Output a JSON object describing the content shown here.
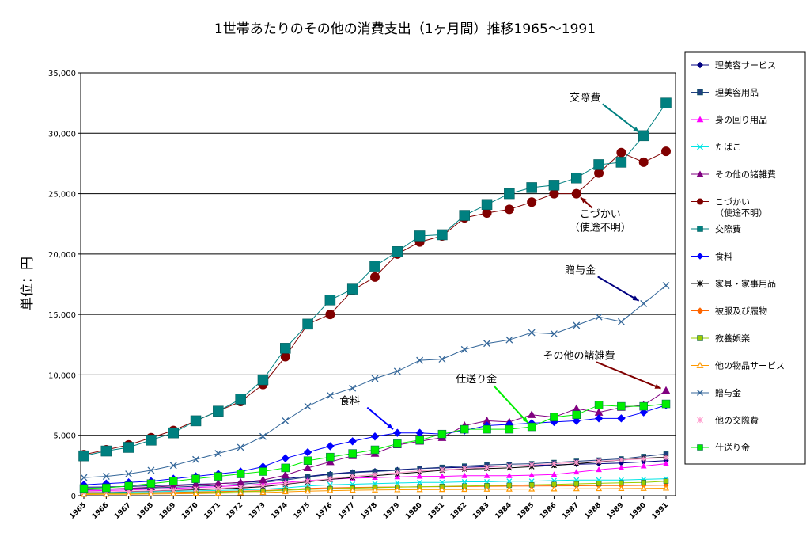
{
  "chart_data": {
    "type": "line",
    "title": "1世帯あたりのその他の消費支出（1ヶ月間）推移1965〜1991",
    "ylabel": "単位：円",
    "xlabel": "",
    "ylim": [
      0,
      35000
    ],
    "yticks": [
      "0",
      "5,000",
      "10,000",
      "15,000",
      "20,000",
      "25,000",
      "30,000",
      "35,000"
    ],
    "x": [
      "1965",
      "1966",
      "1967",
      "1968",
      "1969",
      "1970",
      "1971",
      "1972",
      "1973",
      "1974",
      "1975",
      "1976",
      "1977",
      "1978",
      "1979",
      "1980",
      "1981",
      "1982",
      "1983",
      "1984",
      "1985",
      "1986",
      "1987",
      "1988",
      "1989",
      "1990",
      "1991"
    ],
    "grid": true,
    "legend_position": "right",
    "series": [
      {
        "name": "理美容サービス",
        "color": "#000080",
        "marker": "diamond",
        "values": [
          700,
          720,
          760,
          820,
          880,
          950,
          1000,
          1080,
          1200,
          1400,
          1600,
          1800,
          1950,
          2050,
          2150,
          2250,
          2300,
          2350,
          2400,
          2450,
          2500,
          2550,
          2600,
          2650,
          2700,
          2800,
          2900
        ]
      },
      {
        "name": "理美容用品",
        "color": "#1f3f7f",
        "marker": "square",
        "values": [
          500,
          530,
          580,
          640,
          700,
          780,
          850,
          950,
          1100,
          1300,
          1550,
          1750,
          1900,
          2000,
          2100,
          2250,
          2350,
          2450,
          2550,
          2600,
          2650,
          2750,
          2850,
          2950,
          3050,
          3250,
          3450
        ]
      },
      {
        "name": "身の回り用品",
        "color": "#ff00ff",
        "marker": "triangle",
        "values": [
          400,
          430,
          480,
          540,
          600,
          680,
          750,
          850,
          950,
          1100,
          1250,
          1350,
          1450,
          1500,
          1550,
          1600,
          1600,
          1650,
          1650,
          1650,
          1700,
          1750,
          1950,
          2150,
          2300,
          2450,
          2650
        ]
      },
      {
        "name": "たばこ",
        "color": "#00e5e5",
        "marker": "x",
        "values": [
          250,
          270,
          300,
          330,
          360,
          400,
          430,
          480,
          530,
          650,
          800,
          900,
          950,
          1000,
          1050,
          1100,
          1100,
          1150,
          1150,
          1200,
          1200,
          1250,
          1300,
          1300,
          1300,
          1350,
          1400
        ]
      },
      {
        "name": "その他の諸雑費",
        "color": "#800080",
        "marker": "triangle",
        "values": [
          500,
          550,
          600,
          700,
          800,
          900,
          1000,
          1100,
          1300,
          1700,
          2300,
          2800,
          3300,
          3500,
          4200,
          4500,
          4800,
          5800,
          6200,
          6100,
          6700,
          6500,
          7200,
          6900,
          7300,
          7500,
          8700
        ]
      },
      {
        "name": "こづかい（使途不明）",
        "color": "#800000",
        "marker": "circle",
        "values": [
          3400,
          3800,
          4200,
          4800,
          5400,
          6200,
          7000,
          7800,
          9200,
          11500,
          14200,
          15000,
          17000,
          18100,
          20000,
          21000,
          21500,
          23000,
          23400,
          23700,
          24300,
          25000,
          25000,
          26700,
          28400,
          27600,
          28500
        ]
      },
      {
        "name": "交際費",
        "color": "#008080",
        "marker": "square",
        "values": [
          3300,
          3700,
          4000,
          4600,
          5200,
          6200,
          7000,
          8000,
          9600,
          12200,
          14200,
          16200,
          17100,
          19000,
          20200,
          21500,
          21600,
          23200,
          24100,
          25000,
          25500,
          25700,
          26300,
          27400,
          27600,
          29800,
          32500
        ]
      },
      {
        "name": "食料",
        "color": "#0000ff",
        "marker": "diamond",
        "values": [
          900,
          1000,
          1100,
          1200,
          1400,
          1600,
          1800,
          2000,
          2400,
          3100,
          3600,
          4100,
          4500,
          4900,
          5200,
          5200,
          5100,
          5400,
          5800,
          5900,
          6000,
          6100,
          6200,
          6400,
          6400,
          6900,
          7500
        ]
      },
      {
        "name": "家具・家事用品",
        "color": "#000000",
        "marker": "star",
        "values": [
          300,
          320,
          350,
          400,
          450,
          500,
          560,
          640,
          750,
          950,
          1150,
          1350,
          1500,
          1650,
          1800,
          1950,
          2100,
          2200,
          2250,
          2300,
          2400,
          2500,
          2650,
          2800,
          2950,
          3100,
          3200
        ]
      },
      {
        "name": "被服及び履物",
        "color": "#ff6600",
        "marker": "diamond",
        "values": [
          200,
          210,
          230,
          250,
          280,
          310,
          340,
          380,
          420,
          500,
          600,
          650,
          680,
          700,
          720,
          740,
          750,
          760,
          780,
          790,
          800,
          810,
          820,
          830,
          840,
          850,
          870
        ]
      },
      {
        "name": "教養娯楽",
        "color": "#99cc00",
        "marker": "square",
        "values": [
          150,
          160,
          180,
          200,
          230,
          260,
          290,
          330,
          380,
          450,
          520,
          580,
          620,
          660,
          700,
          740,
          770,
          800,
          830,
          860,
          900,
          940,
          980,
          1020,
          1060,
          1100,
          1200
        ]
      },
      {
        "name": "他の物品サービス",
        "color": "#ff9900",
        "marker": "triangle-open",
        "values": [
          100,
          110,
          120,
          140,
          160,
          180,
          200,
          230,
          260,
          320,
          380,
          420,
          450,
          470,
          490,
          500,
          510,
          520,
          530,
          540,
          550,
          560,
          570,
          580,
          590,
          600,
          620
        ]
      },
      {
        "name": "贈与金",
        "color": "#336699",
        "marker": "x",
        "values": [
          1500,
          1600,
          1800,
          2100,
          2500,
          3000,
          3500,
          4000,
          4900,
          6200,
          7400,
          8300,
          8900,
          9700,
          10300,
          11200,
          11300,
          12100,
          12600,
          12900,
          13500,
          13400,
          14100,
          14800,
          14400,
          15900,
          17400
        ]
      },
      {
        "name": "他の交際費",
        "color": "#ff99cc",
        "marker": "star",
        "values": [
          300,
          330,
          370,
          420,
          480,
          550,
          620,
          700,
          820,
          1000,
          1200,
          1400,
          1600,
          1750,
          1900,
          2050,
          2150,
          2250,
          2350,
          2450,
          2550,
          2650,
          2750,
          2850,
          2950,
          3050,
          3150
        ]
      },
      {
        "name": "仕送り金",
        "color": "#00ee00",
        "marker": "square",
        "values": [
          600,
          650,
          800,
          1000,
          1200,
          1400,
          1600,
          1800,
          2000,
          2300,
          2900,
          3200,
          3500,
          3800,
          4300,
          4600,
          5100,
          5500,
          5500,
          5500,
          5700,
          6500,
          6700,
          7500,
          7400,
          7400,
          7600
        ]
      }
    ],
    "annotations": [
      {
        "text": "交際費",
        "series": "交際費",
        "x_index": 25,
        "color": "#008080"
      },
      {
        "text": "こづかい\n（使途不明）",
        "series": "こづかい（使途不明）",
        "x_index": 22,
        "color": "#800000"
      },
      {
        "text": "贈与金",
        "series": "贈与金",
        "x_index": 25,
        "color": "#000080"
      },
      {
        "text": "その他の諸雑費",
        "series": "その他の諸雑費",
        "x_index": 26,
        "color": "#800000"
      },
      {
        "text": "仕送り金",
        "series": "仕送り金",
        "x_index": 20,
        "color": "#00ee00"
      },
      {
        "text": "食料",
        "series": "食料",
        "x_index": 14,
        "color": "#0000ff"
      }
    ]
  }
}
